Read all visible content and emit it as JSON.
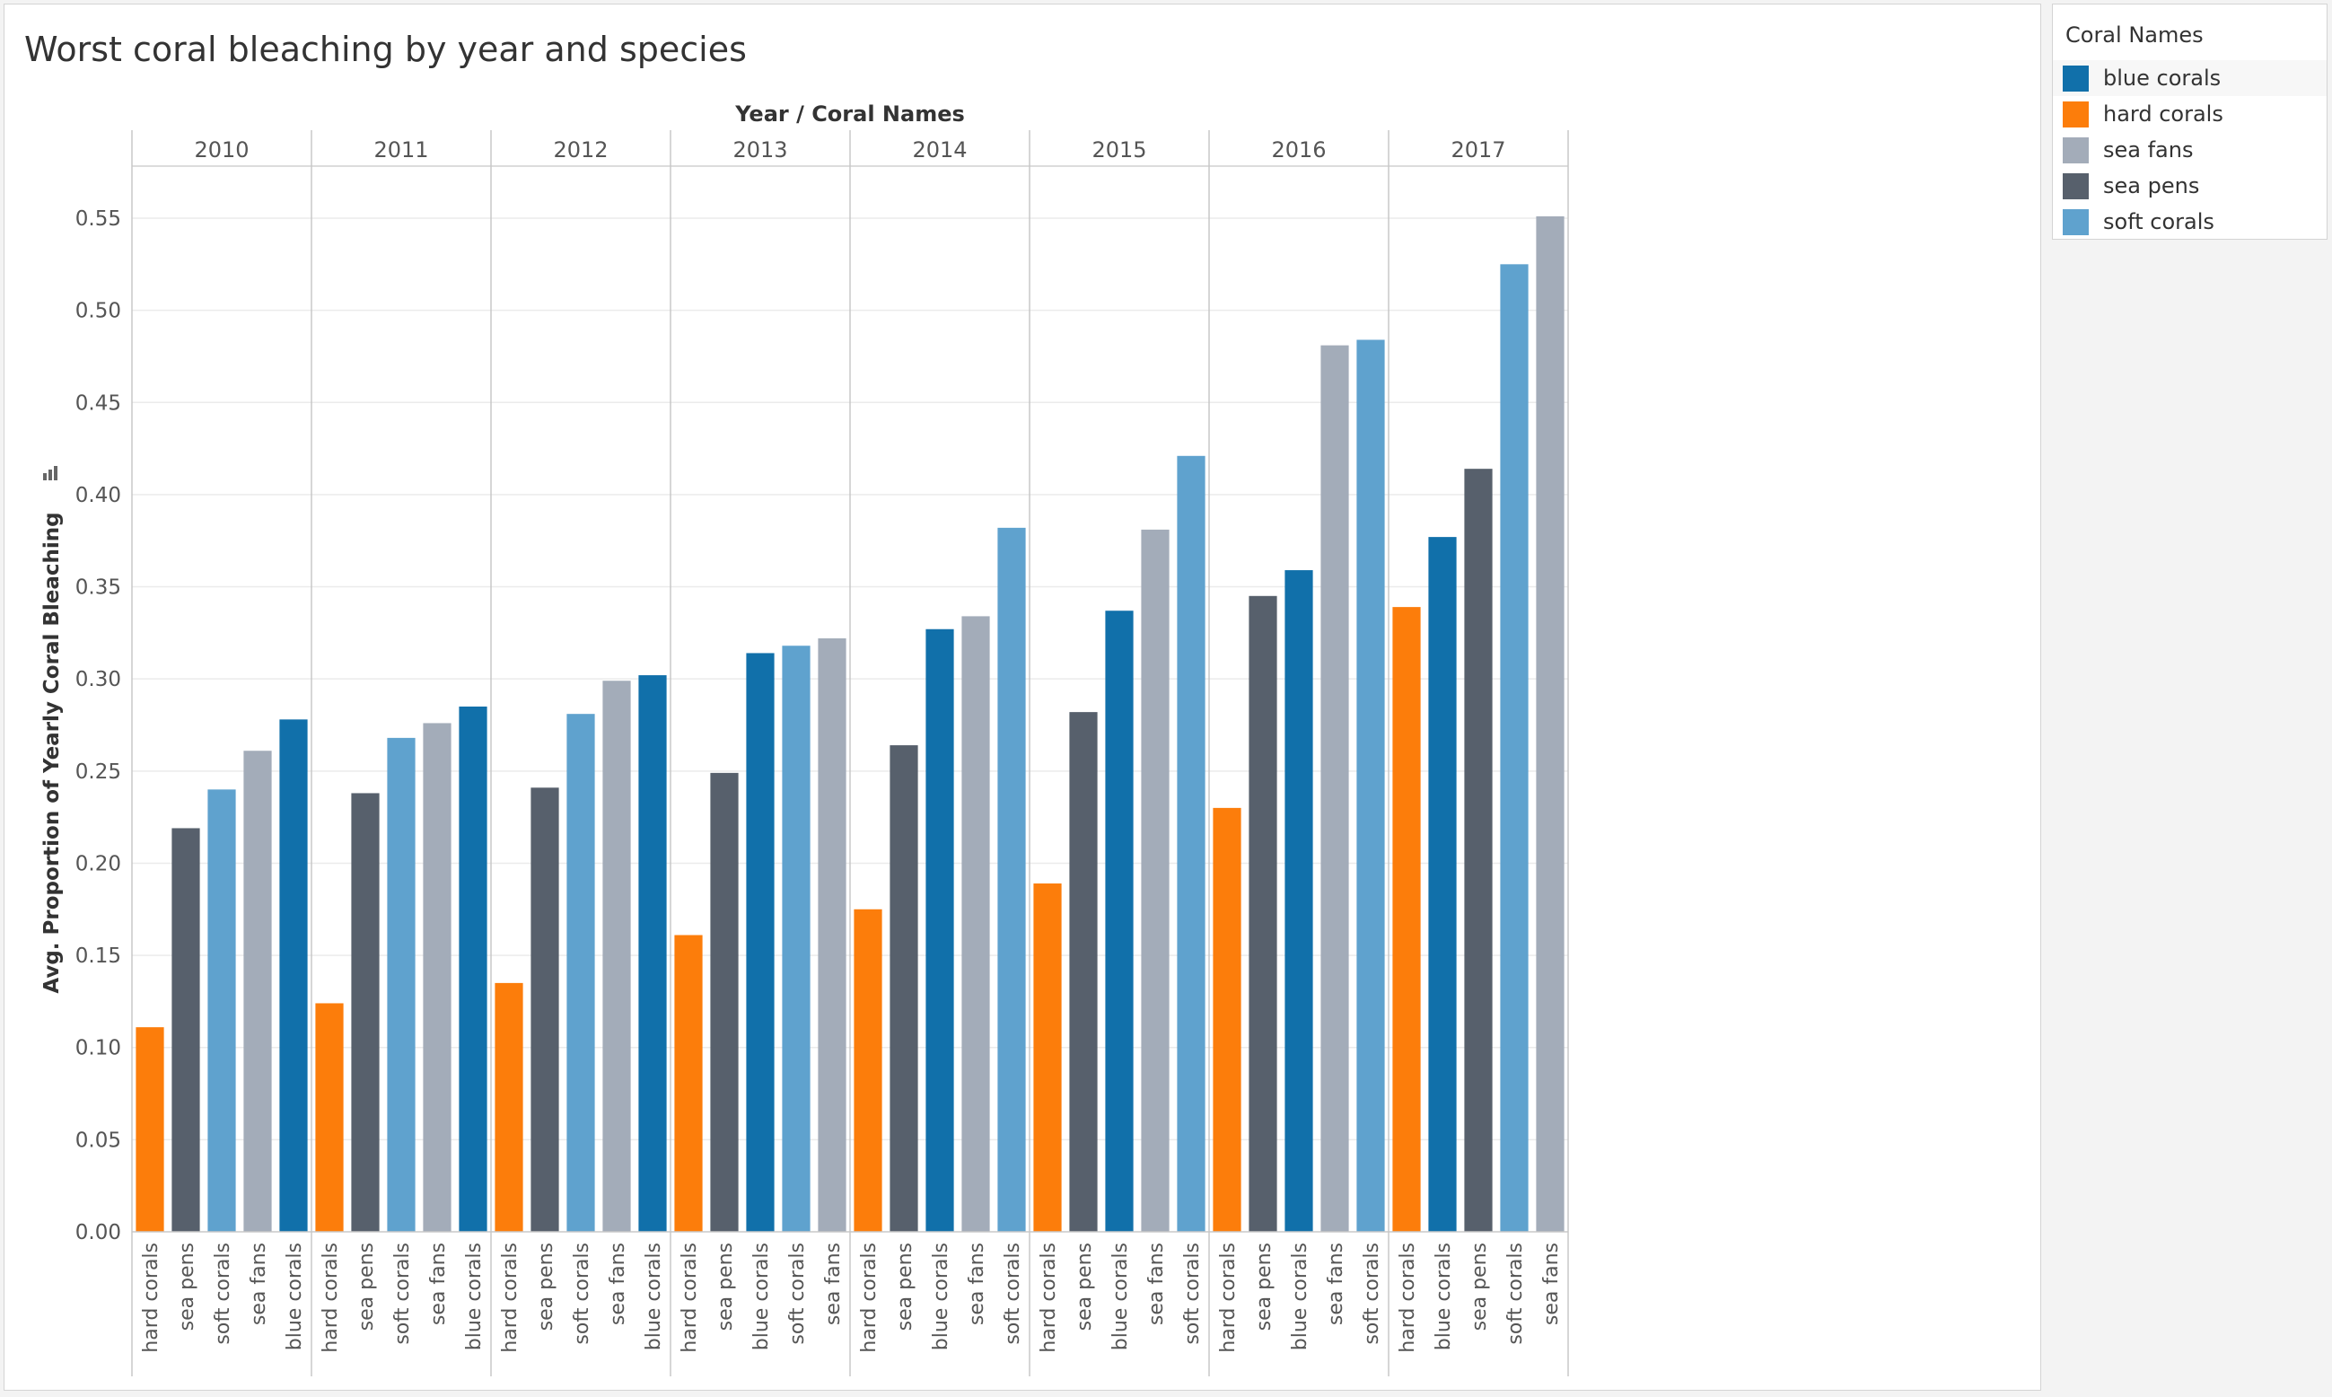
{
  "title": "Worst coral bleaching by year and species",
  "legend": {
    "title": "Coral Names",
    "items": [
      {
        "label": "blue corals",
        "color": "#1170aa"
      },
      {
        "label": "hard corals",
        "color": "#fc7d0b"
      },
      {
        "label": "sea fans",
        "color": "#a3acb9"
      },
      {
        "label": "sea pens",
        "color": "#57606c"
      },
      {
        "label": "soft corals",
        "color": "#5fa2ce"
      }
    ]
  },
  "chart_data": {
    "type": "bar",
    "xlabel": "Year  /  Coral Names",
    "ylabel": "Avg. Proportion of Yearly Coral Bleaching",
    "ylim": [
      0,
      0.57
    ],
    "yticks": [
      "0.00",
      "0.05",
      "0.10",
      "0.15",
      "0.20",
      "0.25",
      "0.30",
      "0.35",
      "0.40",
      "0.45",
      "0.50",
      "0.55"
    ],
    "grid": true,
    "legend_position": "right",
    "groups": [
      {
        "year": "2010",
        "bars": [
          {
            "name": "hard corals",
            "value": 0.111
          },
          {
            "name": "sea pens",
            "value": 0.219
          },
          {
            "name": "soft corals",
            "value": 0.24
          },
          {
            "name": "sea fans",
            "value": 0.261
          },
          {
            "name": "blue corals",
            "value": 0.278
          }
        ]
      },
      {
        "year": "2011",
        "bars": [
          {
            "name": "hard corals",
            "value": 0.124
          },
          {
            "name": "sea pens",
            "value": 0.238
          },
          {
            "name": "soft corals",
            "value": 0.268
          },
          {
            "name": "sea fans",
            "value": 0.276
          },
          {
            "name": "blue corals",
            "value": 0.285
          }
        ]
      },
      {
        "year": "2012",
        "bars": [
          {
            "name": "hard corals",
            "value": 0.135
          },
          {
            "name": "sea pens",
            "value": 0.241
          },
          {
            "name": "soft corals",
            "value": 0.281
          },
          {
            "name": "sea fans",
            "value": 0.299
          },
          {
            "name": "blue corals",
            "value": 0.302
          }
        ]
      },
      {
        "year": "2013",
        "bars": [
          {
            "name": "hard corals",
            "value": 0.161
          },
          {
            "name": "sea pens",
            "value": 0.249
          },
          {
            "name": "blue corals",
            "value": 0.314
          },
          {
            "name": "soft corals",
            "value": 0.318
          },
          {
            "name": "sea fans",
            "value": 0.322
          }
        ]
      },
      {
        "year": "2014",
        "bars": [
          {
            "name": "hard corals",
            "value": 0.175
          },
          {
            "name": "sea pens",
            "value": 0.264
          },
          {
            "name": "blue corals",
            "value": 0.327
          },
          {
            "name": "sea fans",
            "value": 0.334
          },
          {
            "name": "soft corals",
            "value": 0.382
          }
        ]
      },
      {
        "year": "2015",
        "bars": [
          {
            "name": "hard corals",
            "value": 0.189
          },
          {
            "name": "sea pens",
            "value": 0.282
          },
          {
            "name": "blue corals",
            "value": 0.337
          },
          {
            "name": "sea fans",
            "value": 0.381
          },
          {
            "name": "soft corals",
            "value": 0.421
          }
        ]
      },
      {
        "year": "2016",
        "bars": [
          {
            "name": "hard corals",
            "value": 0.23
          },
          {
            "name": "sea pens",
            "value": 0.345
          },
          {
            "name": "blue corals",
            "value": 0.359
          },
          {
            "name": "sea fans",
            "value": 0.481
          },
          {
            "name": "soft corals",
            "value": 0.484
          }
        ]
      },
      {
        "year": "2017",
        "bars": [
          {
            "name": "hard corals",
            "value": 0.339
          },
          {
            "name": "blue corals",
            "value": 0.377
          },
          {
            "name": "sea pens",
            "value": 0.414
          },
          {
            "name": "soft corals",
            "value": 0.525
          },
          {
            "name": "sea fans",
            "value": 0.551
          }
        ]
      }
    ]
  }
}
